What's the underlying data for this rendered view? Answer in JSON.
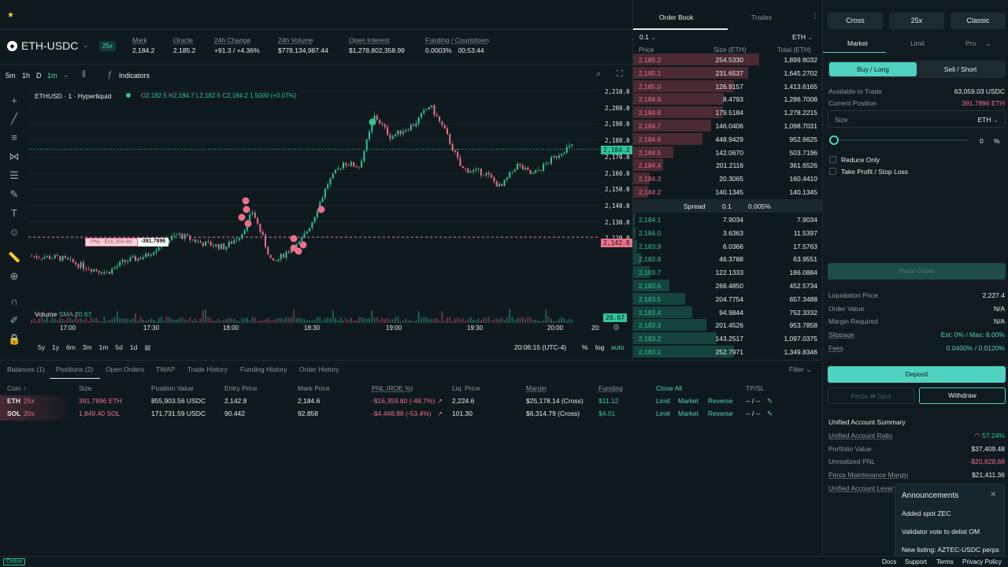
{
  "header": {
    "pair": "ETH-USDC",
    "leverage": "25x"
  },
  "stats": [
    {
      "label": "Mark",
      "value": "2,184.2"
    },
    {
      "label": "Oracle",
      "value": "2,185.2"
    },
    {
      "label": "24h Change",
      "value": "+91.3 / +4.36%"
    },
    {
      "label": "24h Volume",
      "value": "$778,134,987.44"
    },
    {
      "label": "Open Interest",
      "value": "$1,278,802,358.99"
    },
    {
      "label": "Funding / Countdown",
      "value": "0.0003%",
      "value2": "00:53:44"
    }
  ],
  "chart_toolbar": {
    "intervals": [
      "5m",
      "1h",
      "D",
      "1m"
    ],
    "indicators_label": "Indicators"
  },
  "chart_legend": {
    "symbol": "ETHUSD · 1 · Hyperliquid",
    "o": "2,182.5",
    "h": "2,184.7",
    "l": "2,182.5",
    "c": "2,184.2",
    "chg": "1.5000 (+0.07%)"
  },
  "price_axis": [
    "2,210.0",
    "2,200.0",
    "2,190.0",
    "2,180.0",
    "2,170.0",
    "2,160.0",
    "2,150.0",
    "2,140.0",
    "2,130.0",
    "2,120.0"
  ],
  "time_axis": [
    "17:00",
    "17:30",
    "18:00",
    "18:30",
    "19:00",
    "19:30",
    "20:00",
    "20:"
  ],
  "current_price_tag": "2,184.2",
  "position_line_tag": "2,142.8",
  "volume_tag": "20.67",
  "pnl_label": {
    "pnl": "PNL -$16,359.80",
    "size": "-391.7896"
  },
  "volume_legend": {
    "label": "Volume",
    "sma": "SMA",
    "value": "20.67"
  },
  "ranges": [
    "5y",
    "1y",
    "6m",
    "3m",
    "1m",
    "5d",
    "1d"
  ],
  "clock": "20:06:15 (UTC-4)",
  "scale_opts": {
    "pct": "%",
    "log": "log",
    "auto": "auto"
  },
  "orderbook": {
    "tabs": [
      "Order Book",
      "Trades"
    ],
    "tick": "0.1",
    "unit": "ETH",
    "headers": [
      "Price",
      "Size (ETH)",
      "Total (ETH)"
    ],
    "asks": [
      [
        "2,185.2",
        "254.5330",
        "1,899.8032",
        1.0
      ],
      [
        "2,185.1",
        "231.6537",
        "1,645.2702",
        0.91
      ],
      [
        "2,185.0",
        "126.9157",
        "1,413.6165",
        0.8
      ],
      [
        "2,184.9",
        "8.4793",
        "1,286.7008",
        0.72
      ],
      [
        "2,184.8",
        "179.5184",
        "1,278.2215",
        0.71
      ],
      [
        "2,184.7",
        "146.0406",
        "1,098.7031",
        0.62
      ],
      [
        "2,184.6",
        "448.9429",
        "952.6625",
        0.55
      ],
      [
        "2,184.5",
        "142.0670",
        "503.7196",
        0.32
      ],
      [
        "2,184.4",
        "201.2116",
        "361.6526",
        0.24
      ],
      [
        "2,184.3",
        "20.3065",
        "160.4410",
        0.13
      ],
      [
        "2,184.2",
        "140.1345",
        "140.1345",
        0.12
      ]
    ],
    "spread": {
      "label": "Spread",
      "value": "0.1",
      "pct": "0.005%"
    },
    "bids": [
      [
        "2,184.1",
        "7.9034",
        "7.9034",
        0.01
      ],
      [
        "2,184.0",
        "3.6363",
        "11.5397",
        0.02
      ],
      [
        "2,183.9",
        "6.0366",
        "17.5763",
        0.03
      ],
      [
        "2,183.8",
        "46.3788",
        "63.9551",
        0.06
      ],
      [
        "2,183.7",
        "122.1333",
        "186.0884",
        0.13
      ],
      [
        "2,183.6",
        "266.4850",
        "452.5734",
        0.29
      ],
      [
        "2,183.5",
        "204.7754",
        "657.3488",
        0.41
      ],
      [
        "2,183.4",
        "94.9844",
        "752.3332",
        0.47
      ],
      [
        "2,183.3",
        "201.4526",
        "953.7858",
        0.58
      ],
      [
        "2,183.2",
        "143.2517",
        "1,097.0375",
        0.66
      ],
      [
        "2,183.1",
        "252.7971",
        "1,349.8346",
        0.8
      ]
    ]
  },
  "trade": {
    "margin_mode": "Cross",
    "leverage": "25x",
    "account": "Classic",
    "order_tabs": [
      "Market",
      "Limit",
      "Pro"
    ],
    "buy": "Buy / Long",
    "sell": "Sell / Short",
    "available_label": "Available to Trade",
    "available": "63,059.03 USDC",
    "position_label": "Current Position",
    "position": "391.7896 ETH",
    "size_placeholder": "Size",
    "size_unit": "ETH",
    "slider_value": "0",
    "slider_unit": "%",
    "reduce_only": "Reduce Only",
    "tpsl": "Take Profit / Stop Loss",
    "place_order": "Place Order",
    "liq_label": "Liquidation Price",
    "liq": "2,227.4",
    "order_value_label": "Order Value",
    "order_value": "N/A",
    "margin_req_label": "Margin Required",
    "margin_req": "N/A",
    "slippage_label": "Slippage",
    "slippage": "Est: 0% / Max: 8.00%",
    "fees_label": "Fees",
    "fees": "0.0400% / 0.0120%",
    "deposit": "Deposit",
    "perps_spot": "Perps ⇄ Spot",
    "withdraw": "Withdraw",
    "summary_title": "Unified Account Summary",
    "ratio_label": "Unified Account Ratio",
    "ratio": "57.24%",
    "portfolio_label": "Portfolio Value",
    "portfolio": "$37,409.48",
    "upnl_label": "Unrealized PNL",
    "upnl": "-$20,828.68",
    "mm_label": "Perps Maintenance Margin",
    "mm": "$21,411.36",
    "lev_label": "Unified Account Lever"
  },
  "bottom": {
    "tabs": [
      "Balances (1)",
      "Positions (2)",
      "Open Orders",
      "TWAP",
      "Trade History",
      "Funding History",
      "Order History"
    ],
    "filter": "Filter",
    "columns": [
      "Coin",
      "Size",
      "Position Value",
      "Entry Price",
      "Mark Price",
      "PNL (ROE %)",
      "Liq. Price",
      "Margin",
      "Funding",
      "Close All",
      "TP/SL"
    ],
    "rows": [
      {
        "coin": "ETH",
        "lev": "25x",
        "size": "391.7896 ETH",
        "value": "855,903.56 USDC",
        "entry": "2,142.8",
        "mark": "2,184.6",
        "pnl": "-$16,359.80 (-48.7%)",
        "liq": "2,224.6",
        "margin": "$25,178.14 (Cross)",
        "funding": "$11.12",
        "limit": "Limit",
        "market": "Market",
        "reverse": "Reverse",
        "tpsl": "-- / --"
      },
      {
        "coin": "SOL",
        "lev": "20x",
        "size": "1,849.40 SOL",
        "value": "171,731.59 USDC",
        "entry": "90.442",
        "mark": "92.858",
        "pnl": "-$4,468.88 (-53.4%)",
        "liq": "101.30",
        "margin": "$6,314.79 (Cross)",
        "funding": "$4.01",
        "limit": "Limit",
        "market": "Market",
        "reverse": "Reverse",
        "tpsl": "-- / --"
      }
    ]
  },
  "announcements": {
    "title": "Announcements",
    "items": [
      "Added spot ZEC",
      "Validator vote to delist OM",
      "New listing: AZTEC-USDC perps"
    ]
  },
  "footer": {
    "status": "Online",
    "links": [
      "Docs",
      "Support",
      "Terms",
      "Privacy Policy"
    ]
  },
  "colors": {
    "green": "#2fc59c",
    "red": "#ed7088",
    "accent": "#50d2c1"
  }
}
